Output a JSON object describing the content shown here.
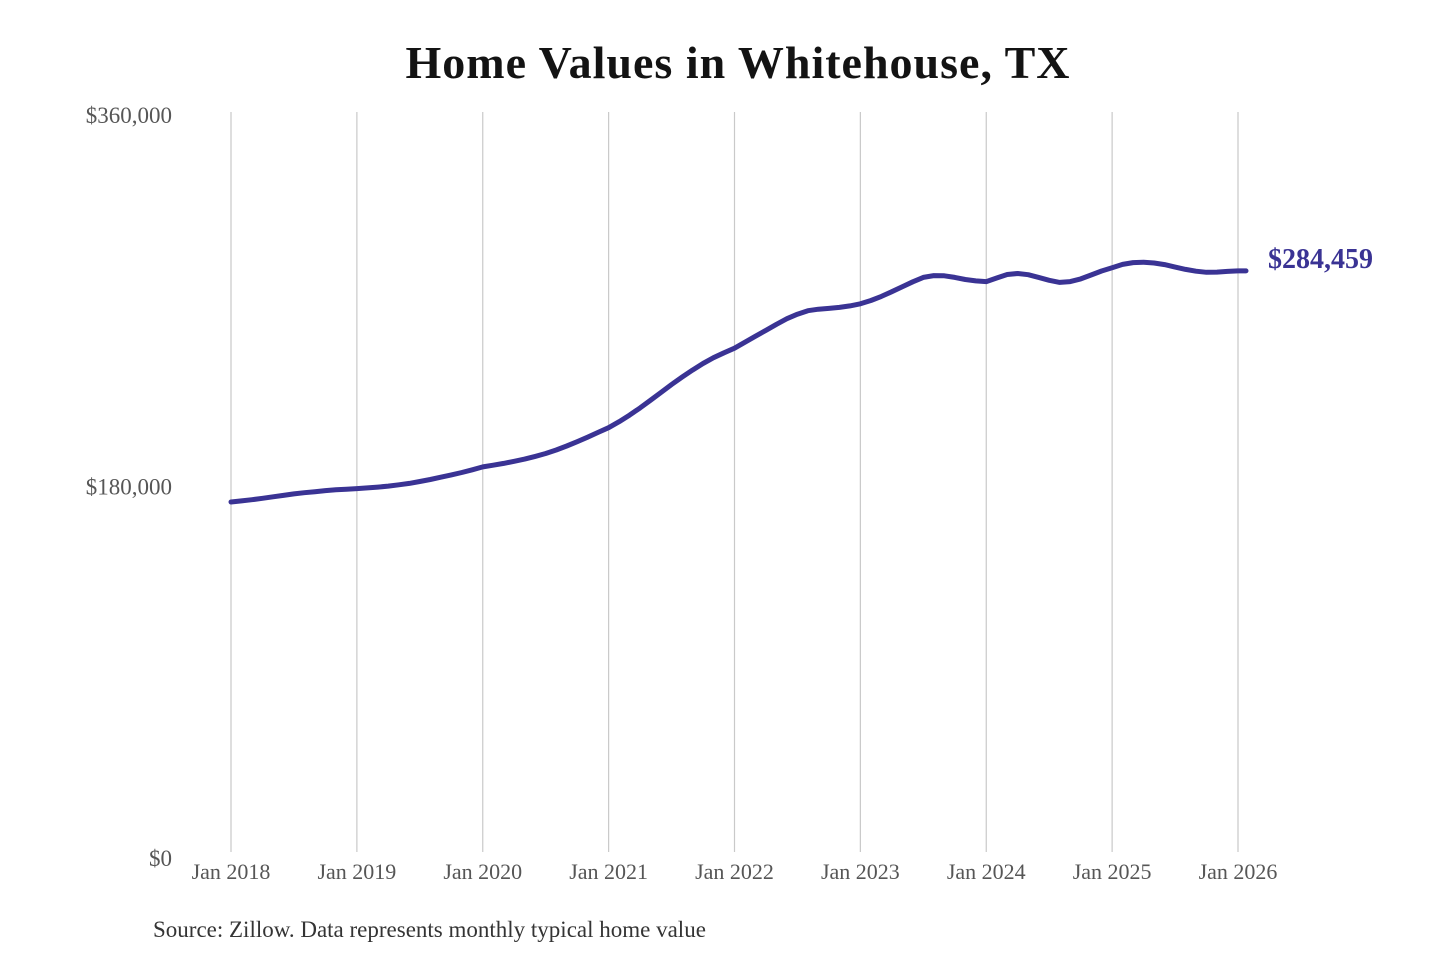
{
  "title": "Home Values in Whitehouse, TX",
  "annotation_label": "$284,459",
  "source_note": "Source: Zillow. Data represents monthly typical home value",
  "colors": {
    "line": "#3a3394",
    "annotation": "#3a3394",
    "gridline": "#c9c9c9",
    "tick_label": "#565656",
    "title": "#131313",
    "source": "#343434"
  },
  "chart_data": {
    "type": "line",
    "title": "Home Values in Whitehouse, TX",
    "xlabel": "",
    "ylabel": "",
    "grid": "vertical-only",
    "legend": "none",
    "ylim": [
      0,
      360000
    ],
    "y_ticks": [
      0,
      180000,
      360000
    ],
    "y_tick_labels": [
      "$0",
      "$180,000",
      "$360,000"
    ],
    "x_tick_labels": [
      "Jan 2018",
      "Jan 2019",
      "Jan 2020",
      "Jan 2021",
      "Jan 2022",
      "Jan 2023",
      "Jan 2024",
      "Jan 2025",
      "Jan 2026"
    ],
    "x_range": {
      "start": "2018-01",
      "end": "2026-01",
      "frequency": "monthly"
    },
    "last_point": {
      "label": "$284,459",
      "value": 284459
    },
    "values": [
      172500,
      173000,
      173600,
      174300,
      175000,
      175700,
      176400,
      177000,
      177500,
      178000,
      178400,
      178700,
      179000,
      179300,
      179700,
      180200,
      180800,
      181500,
      182400,
      183400,
      184500,
      185600,
      186800,
      188100,
      189500,
      190300,
      191200,
      192200,
      193300,
      194600,
      196000,
      197700,
      199600,
      201700,
      203900,
      206200,
      208500,
      211400,
      214600,
      218100,
      221800,
      225600,
      229400,
      233000,
      236400,
      239600,
      242400,
      244800,
      247000,
      249900,
      252800,
      255700,
      258600,
      261300,
      263500,
      265200,
      265900,
      266300,
      266800,
      267500,
      268500,
      270100,
      272100,
      274400,
      276800,
      279200,
      281300,
      282200,
      282100,
      281300,
      280300,
      279600,
      279300,
      281000,
      282700,
      283200,
      282600,
      281300,
      279900,
      278900,
      279300,
      280600,
      282500,
      284400,
      286000,
      287600,
      288500,
      288700,
      288300,
      287500,
      286300,
      285200,
      284300,
      283800,
      283900,
      284200,
      284459
    ]
  }
}
